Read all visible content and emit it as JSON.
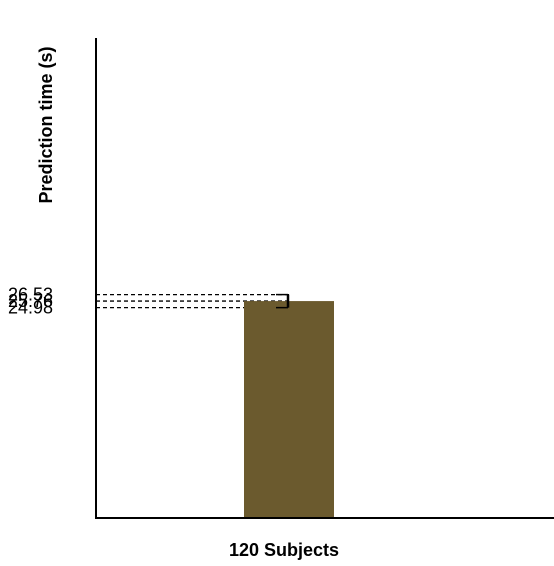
{
  "chart_data": {
    "type": "bar",
    "categories": [
      "120 Subjects"
    ],
    "values": [
      25.76
    ],
    "error_bar": {
      "lower": 24.98,
      "upper": 26.53
    },
    "ylabel": "Prediction time (s)",
    "xlabel": "",
    "tick_labels": [
      "26.53",
      "25.76",
      "24.98"
    ],
    "ylim": [
      0,
      57
    ],
    "grid": false,
    "legend": "none",
    "colors": {
      "bar": "#6b5a2e",
      "axis": "#000000",
      "error_bar": "#000000",
      "reference_lines": "#000000"
    }
  }
}
